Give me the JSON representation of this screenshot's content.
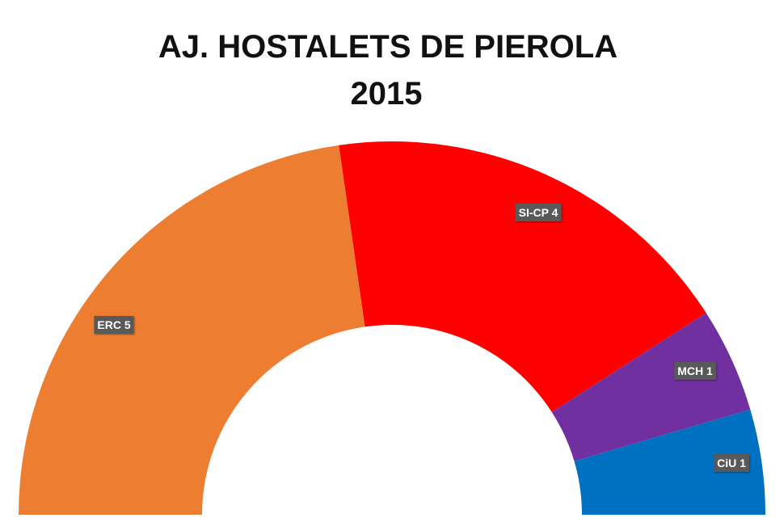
{
  "chart_data": {
    "type": "pie",
    "variant": "half-donut",
    "title": "AJ. HOSTALETS DE PIEROLA",
    "subtitle": "2015",
    "categories": [
      "ERC",
      "SI-CP",
      "MCH",
      "CiU"
    ],
    "values": [
      5,
      4,
      1,
      1
    ],
    "labels": [
      "ERC 5",
      "SI-CP 4",
      "MCH 1",
      "CiU 1"
    ],
    "colors": [
      "#ED7D31",
      "#FF0000",
      "#7030A0",
      "#0070C0"
    ],
    "legend": "none"
  }
}
